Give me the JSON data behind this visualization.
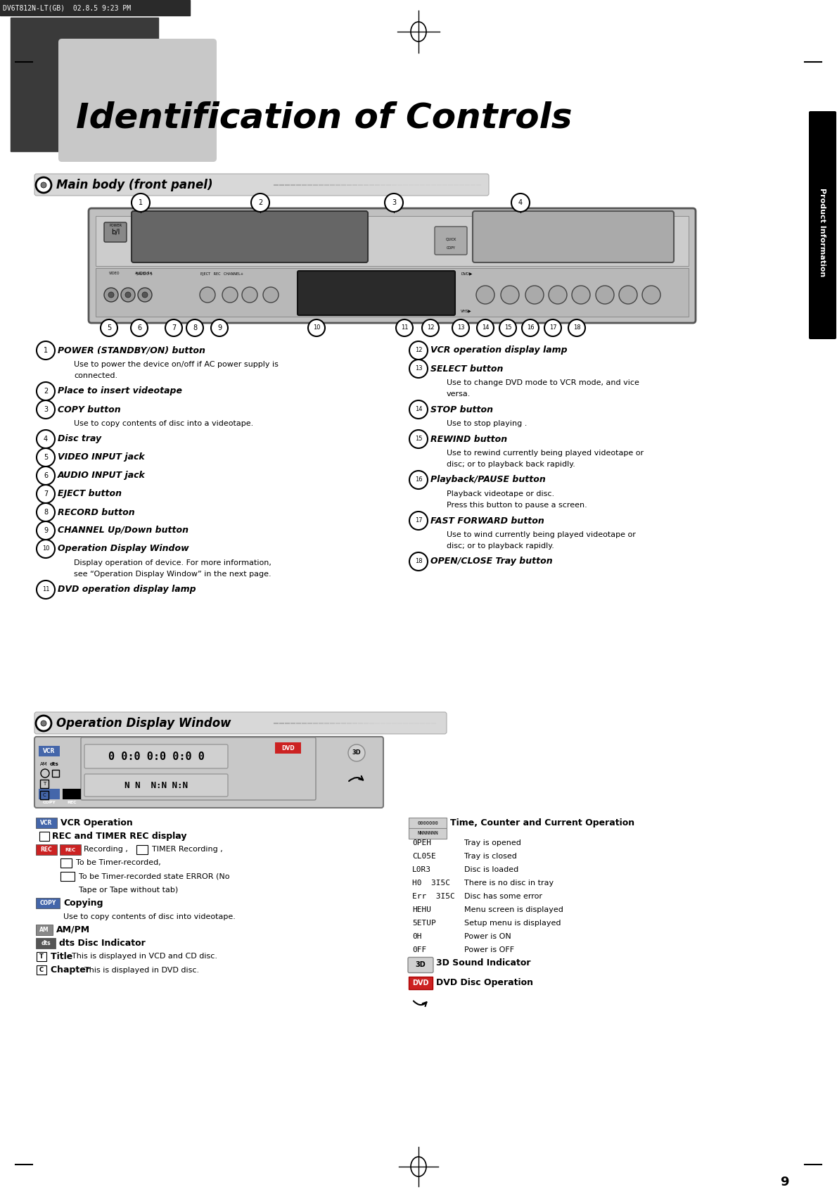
{
  "page_bg": "#ffffff",
  "header_bar_color": "#2a2a2a",
  "header_text": "DV6T812N-LT(GB)  02.8.5 9:23 PM",
  "page_number": "9",
  "product_info_text": "Product Information",
  "title_text": "Identification of Controls",
  "section1_title": "Main body (front panel)",
  "section2_title": "Operation Display Window",
  "left_items": [
    [
      "1",
      "POWER (STANDBY/ON) button",
      "Use to power the device on/off if AC power supply is\nconnected."
    ],
    [
      "2",
      "Place to insert videotape",
      ""
    ],
    [
      "3",
      "COPY button",
      "Use to copy contents of disc into a videotape."
    ],
    [
      "4",
      "Disc tray",
      ""
    ],
    [
      "5",
      "VIDEO INPUT jack",
      ""
    ],
    [
      "6",
      "AUDIO INPUT jack",
      ""
    ],
    [
      "7",
      "EJECT button",
      ""
    ],
    [
      "8",
      "RECORD button",
      ""
    ],
    [
      "9",
      "CHANNEL Up/Down button",
      ""
    ],
    [
      "10",
      "Operation Display Window",
      "Display operation of device. For more information,\nsee “Operation Display Window” in the next page."
    ],
    [
      "11",
      "DVD operation display lamp",
      ""
    ]
  ],
  "right_items": [
    [
      "12",
      "VCR operation display lamp",
      ""
    ],
    [
      "13",
      "SELECT button",
      "Use to change DVD mode to VCR mode, and vice\nversa."
    ],
    [
      "14",
      "STOP button",
      "Use to stop playing ."
    ],
    [
      "15",
      "REWIND button",
      "Use to rewind currently being played videotape or\ndisc; or to playback back rapidly."
    ],
    [
      "16",
      "Playback/PAUSE button",
      "Playback videotape or disc.\nPress this button to pause a screen."
    ],
    [
      "17",
      "FAST FORWARD button",
      "Use to wind currently being played videotape or\ndisc; or to playback rapidly."
    ],
    [
      "18",
      "OPEN/CLOSE Tray button",
      ""
    ]
  ]
}
